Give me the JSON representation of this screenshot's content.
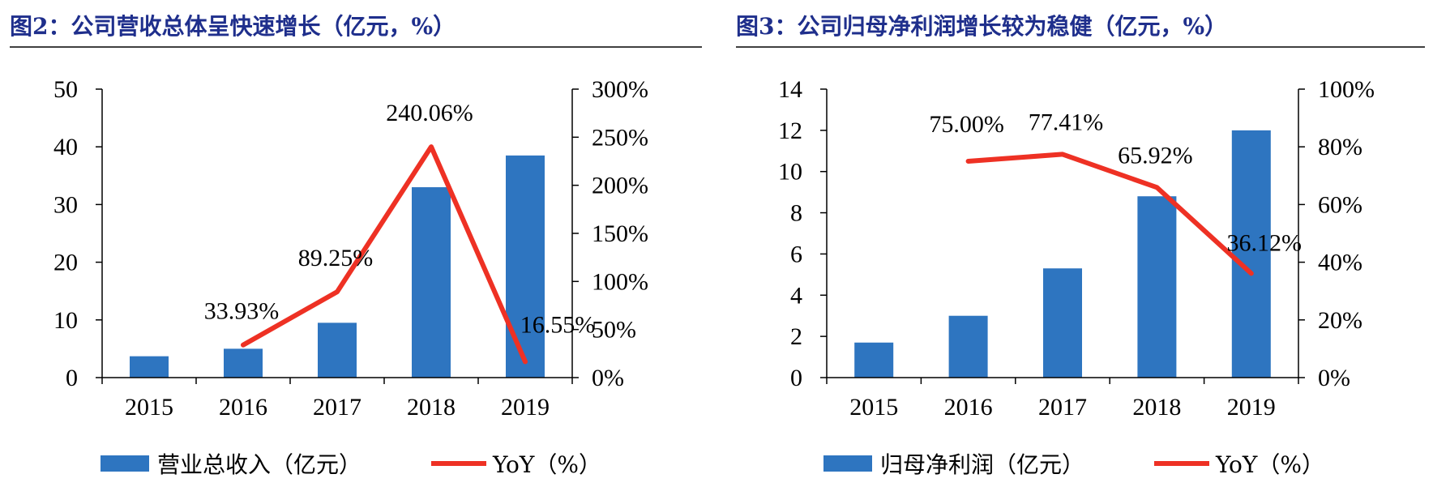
{
  "colors": {
    "title": "#1f2f8c",
    "bar": "#2e75c0",
    "line": "#ee3124",
    "axis": "#000000",
    "rule": "#000000"
  },
  "chart_data": [
    {
      "type": "bar+line",
      "title": "图2：公司营收总体呈快速增长（亿元，%）",
      "categories": [
        "2015",
        "2016",
        "2017",
        "2018",
        "2019"
      ],
      "series": [
        {
          "name": "营业总收入（亿元）",
          "kind": "bar",
          "axis": "left",
          "values": [
            3.7,
            5.0,
            9.5,
            33.0,
            38.5
          ]
        },
        {
          "name": "YoY（%）",
          "kind": "line",
          "axis": "right",
          "values": [
            null,
            33.93,
            89.25,
            240.06,
            16.55
          ],
          "labels": [
            "",
            "33.93%",
            "89.25%",
            "240.06%",
            "16.55%"
          ]
        }
      ],
      "yleft": {
        "min": 0,
        "max": 50,
        "ticks": [
          "0",
          "10",
          "20",
          "30",
          "40",
          "50"
        ]
      },
      "yright": {
        "min": 0,
        "max": 300,
        "ticks": [
          "0%",
          "50%",
          "100%",
          "150%",
          "200%",
          "250%",
          "300%"
        ]
      },
      "legend": [
        "营业总收入（亿元）",
        "YoY（%）"
      ]
    },
    {
      "type": "bar+line",
      "title": "图3：公司归母净利润增长较为稳健（亿元，%）",
      "categories": [
        "2015",
        "2016",
        "2017",
        "2018",
        "2019"
      ],
      "series": [
        {
          "name": "归母净利润（亿元）",
          "kind": "bar",
          "axis": "left",
          "values": [
            1.7,
            3.0,
            5.3,
            8.8,
            12.0
          ]
        },
        {
          "name": "YoY（%）",
          "kind": "line",
          "axis": "right",
          "values": [
            null,
            75.0,
            77.41,
            65.92,
            36.12
          ],
          "labels": [
            "",
            "75.00%",
            "77.41%",
            "65.92%",
            "36.12%"
          ]
        }
      ],
      "yleft": {
        "min": 0,
        "max": 14,
        "ticks": [
          "0",
          "2",
          "4",
          "6",
          "8",
          "10",
          "12",
          "14"
        ]
      },
      "yright": {
        "min": 0,
        "max": 100,
        "ticks": [
          "0%",
          "20%",
          "40%",
          "60%",
          "80%",
          "100%"
        ]
      },
      "legend": [
        "归母净利润（亿元）",
        "YoY（%）"
      ]
    }
  ]
}
